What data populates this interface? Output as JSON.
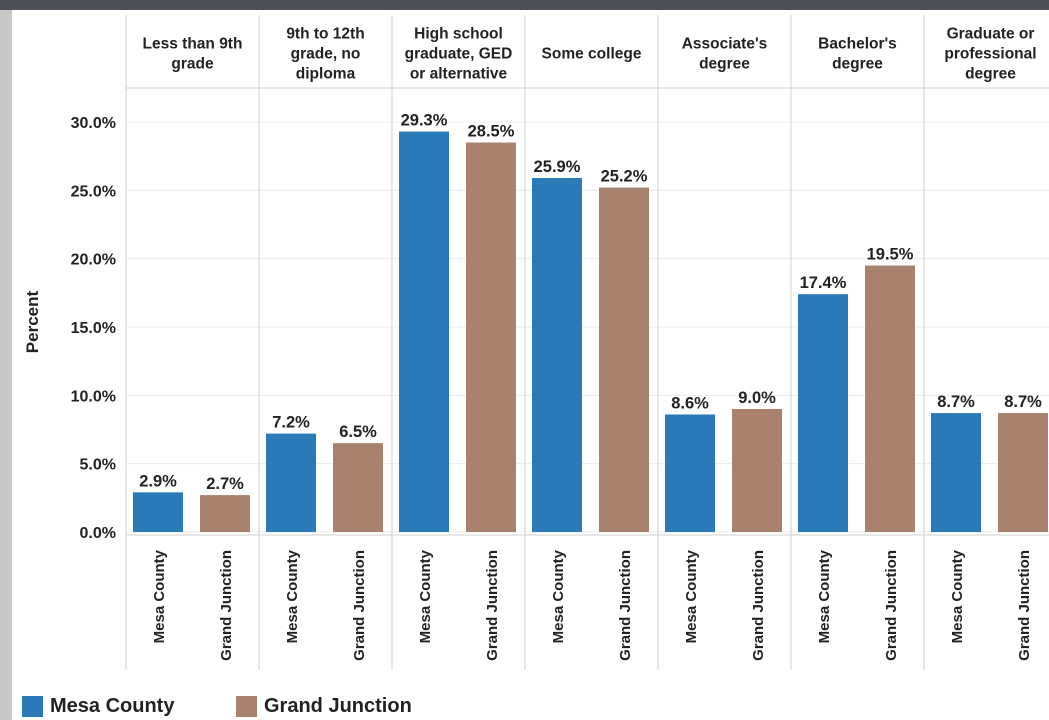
{
  "chart_data": {
    "type": "bar",
    "title": "",
    "ylabel": "Percent",
    "ylim": [
      0,
      30
    ],
    "yticks": [
      "0.0%",
      "5.0%",
      "10.0%",
      "15.0%",
      "20.0%",
      "25.0%",
      "30.0%"
    ],
    "categories": [
      [
        "Less than 9th",
        "grade"
      ],
      [
        "9th to 12th",
        "grade, no",
        "diploma"
      ],
      [
        "High school",
        "graduate, GED",
        "or alternative"
      ],
      [
        "Some college"
      ],
      [
        "Associate's",
        "degree"
      ],
      [
        "Bachelor's",
        "degree"
      ],
      [
        "Graduate or",
        "professional",
        "degree"
      ]
    ],
    "series": [
      {
        "name": "Mesa County",
        "color": "#2a7ab8",
        "values": [
          2.9,
          7.2,
          29.3,
          25.9,
          8.6,
          17.4,
          8.7
        ],
        "labels": [
          "2.9%",
          "7.2%",
          "29.3%",
          "25.9%",
          "8.6%",
          "17.4%",
          "8.7%"
        ]
      },
      {
        "name": "Grand Junction",
        "color": "#a8826c",
        "values": [
          2.7,
          6.5,
          28.5,
          25.2,
          9.0,
          19.5,
          8.7
        ],
        "labels": [
          "2.7%",
          "6.5%",
          "28.5%",
          "25.2%",
          "9.0%",
          "19.5%",
          "8.7%"
        ]
      }
    ],
    "legend": {
      "placement": "bottom-left",
      "items": [
        "Mesa County",
        "Grand Junction"
      ]
    },
    "grid": {
      "horizontal": true,
      "vertical_group_dividers": true
    }
  }
}
